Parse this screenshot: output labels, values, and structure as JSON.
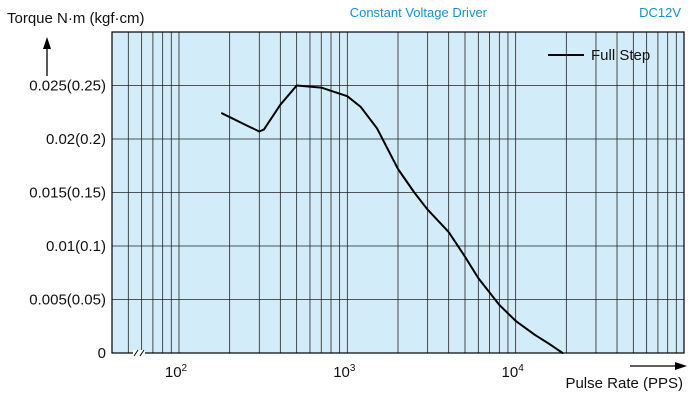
{
  "header": {
    "driver": "Constant Voltage Driver",
    "voltage": "DC12V",
    "accent_color": "#1a8fc8"
  },
  "chart_data": {
    "type": "line",
    "ylabel": "Torque N·m (kgf·cm)",
    "xlabel": "Pulse Rate (PPS)",
    "x_scale": "log",
    "xlim": [
      40,
      100000
    ],
    "ylim": [
      0,
      0.03
    ],
    "x_ticks": [
      {
        "value": 100,
        "base": "10",
        "exp": "2"
      },
      {
        "value": 1000,
        "base": "10",
        "exp": "3"
      },
      {
        "value": 10000,
        "base": "10",
        "exp": "4"
      }
    ],
    "y_ticks": [
      {
        "value": 0,
        "label": "0"
      },
      {
        "value": 0.005,
        "label": "0.005(0.05)"
      },
      {
        "value": 0.01,
        "label": "0.01(0.1)"
      },
      {
        "value": 0.015,
        "label": "0.015(0.15)"
      },
      {
        "value": 0.02,
        "label": "0.02(0.2)"
      },
      {
        "value": 0.025,
        "label": "0.025(0.25)"
      }
    ],
    "grid": true,
    "plot_background": "#d3ecf9",
    "axis_break": true,
    "legend": {
      "position": "top-right"
    },
    "series": [
      {
        "name": "Full Step",
        "color": "#000000",
        "x": [
          180,
          250,
          300,
          320,
          400,
          500,
          700,
          1000,
          1200,
          1500,
          2000,
          2500,
          3000,
          4000,
          5000,
          6000,
          8000,
          10000,
          13000,
          16000,
          19000
        ],
        "y": [
          0.0224,
          0.0213,
          0.0207,
          0.0209,
          0.0232,
          0.025,
          0.0248,
          0.024,
          0.023,
          0.021,
          0.0172,
          0.015,
          0.0134,
          0.0113,
          0.009,
          0.007,
          0.0045,
          0.003,
          0.0017,
          0.0008,
          0.0
        ]
      }
    ]
  }
}
